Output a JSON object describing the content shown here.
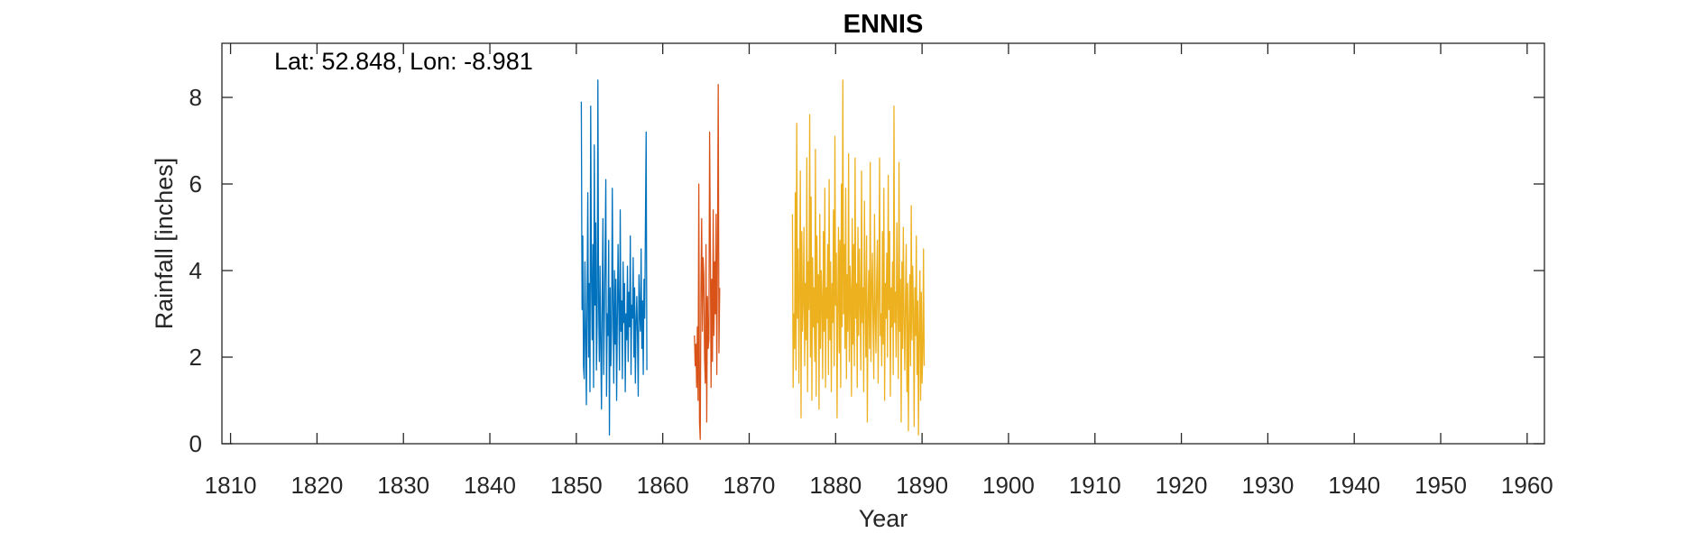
{
  "chart_data": {
    "type": "line",
    "title": "ENNIS",
    "xlabel": "Year",
    "ylabel": "Rainfall [inches]",
    "annotation": "Lat: 52.848, Lon: -8.981",
    "xlim": [
      1809,
      1962
    ],
    "ylim": [
      0,
      9.25
    ],
    "xticks": [
      1810,
      1820,
      1830,
      1840,
      1850,
      1860,
      1870,
      1880,
      1890,
      1900,
      1910,
      1920,
      1930,
      1940,
      1950,
      1960
    ],
    "yticks": [
      0,
      2,
      4,
      6,
      8
    ],
    "grid": false,
    "box": true,
    "series": [
      {
        "color": "#0072BD",
        "x_start": 1850.58,
        "x_step": 0.08333,
        "values": [
          7.9,
          3.1,
          4.8,
          1.8,
          1.5,
          4.2,
          2.6,
          0.9,
          3.4,
          5.8,
          2.0,
          3.7,
          1.2,
          7.8,
          3.9,
          2.4,
          4.6,
          1.3,
          6.9,
          3.2,
          5.1,
          1.7,
          2.8,
          8.4,
          3.3,
          1.9,
          4.1,
          2.2,
          0.8,
          3.5,
          5.2,
          1.6,
          2.9,
          4.4,
          6.1,
          1.1,
          3.0,
          2.5,
          4.7,
          0.2,
          3.6,
          1.8,
          2.7,
          5.9,
          3.2,
          1.4,
          4.0,
          2.3,
          3.8,
          1.0,
          2.9,
          4.6,
          3.1,
          1.7,
          5.4,
          2.6,
          3.3,
          1.5,
          4.2,
          2.8,
          3.7,
          1.2,
          3.0,
          2.4,
          4.1,
          1.9,
          3.5,
          2.7,
          4.8,
          1.6,
          3.2,
          2.9,
          4.3,
          2.0,
          3.6,
          1.4,
          2.8,
          3.4,
          2.5,
          1.1,
          3.9,
          3.0,
          2.6,
          4.5,
          2.2,
          3.3,
          1.6,
          3.8,
          2.9,
          5.1,
          7.2,
          1.7
        ]
      },
      {
        "color": "#D95319",
        "x_start": 1863.67,
        "x_step": 0.08333,
        "values": [
          2.5,
          1.8,
          2.3,
          1.3,
          2.7,
          1.0,
          6.0,
          0.5,
          0.1,
          3.6,
          5.2,
          2.6,
          4.3,
          3.9,
          2.0,
          1.4,
          4.6,
          0.5,
          3.4,
          2.2,
          2.4,
          7.2,
          4.7,
          1.3,
          3.8,
          1.9,
          5.4,
          2.5,
          4.2,
          3.0,
          5.3,
          1.6,
          4.6,
          8.3,
          2.1,
          3.6
        ]
      },
      {
        "color": "#EDB120",
        "x_start": 1875.0,
        "x_step": 0.08333,
        "values": [
          5.3,
          1.3,
          3.0,
          2.2,
          5.8,
          1.7,
          7.4,
          2.9,
          4.5,
          1.4,
          3.8,
          6.3,
          0.6,
          4.9,
          2.6,
          3.3,
          5.0,
          1.8,
          3.7,
          2.4,
          6.6,
          1.2,
          4.2,
          3.1,
          7.6,
          2.0,
          5.7,
          1.0,
          4.3,
          2.7,
          3.6,
          1.9,
          6.8,
          1.1,
          4.8,
          2.8,
          3.9,
          0.8,
          5.3,
          2.2,
          4.0,
          3.3,
          1.5,
          4.9,
          2.6,
          5.9,
          1.3,
          3.6,
          2.9,
          4.6,
          1.6,
          6.1,
          2.4,
          4.2,
          1.2,
          3.7,
          2.8,
          5.4,
          1.8,
          7.1,
          3.2,
          4.4,
          0.6,
          3.3,
          5.0,
          2.1,
          4.7,
          1.3,
          6.0,
          2.7,
          8.4,
          3.0,
          4.6,
          2.2,
          5.9,
          1.5,
          3.9,
          2.6,
          6.7,
          1.9,
          4.1,
          3.5,
          1.1,
          5.2,
          2.3,
          4.6,
          1.8,
          6.6,
          2.9,
          3.7,
          1.3,
          5.0,
          2.5,
          4.5,
          3.2,
          1.7,
          6.3,
          2.8,
          3.6,
          1.2,
          5.6,
          3.4,
          2.0,
          4.8,
          0.5,
          3.1,
          4.0,
          2.2,
          6.5,
          1.9,
          3.5,
          4.4,
          2.7,
          1.5,
          5.3,
          3.0,
          2.1,
          3.8,
          4.7,
          1.4,
          3.3,
          6.6,
          2.5,
          3.0,
          1.8,
          4.9,
          2.3,
          5.9,
          1.0,
          3.7,
          2.9,
          4.4,
          2.0,
          6.2,
          3.1,
          4.9,
          1.1,
          3.6,
          2.7,
          4.2,
          1.6,
          7.8,
          2.8,
          3.5,
          2.0,
          5.1,
          3.3,
          1.5,
          6.5,
          2.6,
          3.8,
          0.5,
          4.2,
          2.2,
          5.0,
          2.9,
          1.7,
          3.4,
          4.6,
          1.2,
          3.7,
          0.3,
          2.8,
          3.9,
          1.8,
          5.5,
          2.4,
          4.1,
          3.1,
          0.4,
          3.6,
          2.5,
          4.8,
          1.6,
          3.3,
          0.2,
          2.7,
          4.0,
          1.0,
          3.5,
          1.4,
          2.1,
          4.5,
          1.8
        ]
      }
    ]
  }
}
